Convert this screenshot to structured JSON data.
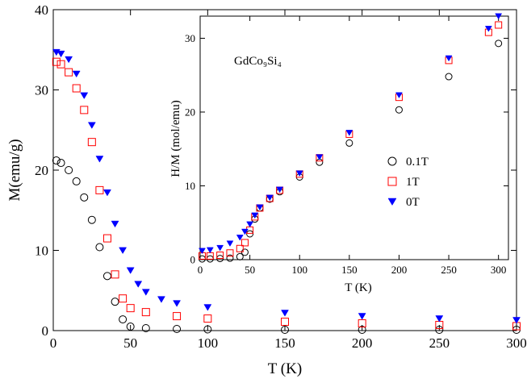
{
  "chart_data": [
    {
      "type": "scatter",
      "title": "",
      "xlabel": "T (K)",
      "ylabel": "M(emu/g)",
      "xlim": [
        0,
        300
      ],
      "ylim": [
        0,
        40
      ],
      "xticks": [
        0,
        50,
        100,
        150,
        200,
        250,
        300
      ],
      "yticks": [
        0,
        10,
        20,
        30,
        40
      ],
      "grid": false,
      "legend": "none",
      "series": [
        {
          "marker": "circle-open",
          "color": "#000000",
          "x": [
            2,
            5,
            10,
            15,
            20,
            25,
            30,
            35,
            40,
            45,
            50,
            60,
            80,
            100,
            150,
            200,
            250,
            300
          ],
          "y": [
            21.2,
            20.9,
            20.0,
            18.6,
            16.6,
            13.8,
            10.4,
            6.8,
            3.6,
            1.4,
            0.5,
            0.3,
            0.2,
            0.15,
            0.1,
            0.1,
            0.1,
            0.1
          ]
        },
        {
          "marker": "square-open",
          "color": "#ff0000",
          "x": [
            2,
            5,
            10,
            15,
            20,
            25,
            30,
            35,
            40,
            45,
            50,
            60,
            80,
            100,
            150,
            200,
            250,
            300
          ],
          "y": [
            33.5,
            33.2,
            32.2,
            30.2,
            27.5,
            23.5,
            17.5,
            11.5,
            7.0,
            4.0,
            2.8,
            2.3,
            1.8,
            1.5,
            1.1,
            0.9,
            0.7,
            0.55
          ]
        },
        {
          "marker": "triangle-down-filled",
          "color": "#0000ff",
          "x": [
            2,
            5,
            10,
            15,
            20,
            25,
            30,
            35,
            40,
            45,
            50,
            55,
            60,
            70,
            80,
            100,
            150,
            200,
            250,
            300
          ],
          "y": [
            34.7,
            34.5,
            33.8,
            32.0,
            29.3,
            25.6,
            21.4,
            17.2,
            13.3,
            10.0,
            7.5,
            5.8,
            4.8,
            3.9,
            3.4,
            2.9,
            2.2,
            1.8,
            1.5,
            1.3
          ]
        }
      ]
    },
    {
      "type": "scatter",
      "title": "",
      "annotation": "GdCo₉Si₄",
      "xlabel": "T (K)",
      "ylabel": "H/M (mol/emu)",
      "xlim": [
        0,
        310
      ],
      "ylim": [
        0,
        33
      ],
      "xticks": [
        0,
        50,
        100,
        150,
        200,
        250,
        300
      ],
      "yticks": [
        0,
        10,
        20,
        30
      ],
      "grid": false,
      "legend": "center-right",
      "series": [
        {
          "name": "0.1T",
          "marker": "circle-open",
          "color": "#000000",
          "x": [
            2,
            10,
            20,
            30,
            40,
            45,
            50,
            55,
            60,
            70,
            80,
            100,
            120,
            150,
            200,
            250,
            300
          ],
          "y": [
            0.1,
            0.1,
            0.15,
            0.2,
            0.4,
            1.0,
            3.5,
            5.5,
            7.0,
            8.2,
            9.2,
            11.2,
            13.2,
            15.8,
            20.3,
            24.8,
            29.3
          ]
        },
        {
          "name": "1T",
          "marker": "square-open",
          "color": "#ff0000",
          "x": [
            2,
            10,
            20,
            30,
            40,
            45,
            50,
            55,
            60,
            70,
            80,
            100,
            120,
            150,
            200,
            250,
            290,
            300
          ],
          "y": [
            0.5,
            0.5,
            0.6,
            0.9,
            1.5,
            2.3,
            4.0,
            5.8,
            7.0,
            8.3,
            9.4,
            11.6,
            13.8,
            17.0,
            22.0,
            27.0,
            30.8,
            31.8
          ]
        },
        {
          "name": "0T",
          "marker": "triangle-down-filled",
          "color": "#0000ff",
          "x": [
            2,
            10,
            20,
            30,
            40,
            45,
            50,
            55,
            60,
            70,
            80,
            100,
            120,
            150,
            200,
            250,
            290,
            300
          ],
          "y": [
            1.2,
            1.3,
            1.6,
            2.2,
            3.0,
            3.8,
            4.8,
            6.0,
            7.1,
            8.4,
            9.5,
            11.7,
            13.9,
            17.2,
            22.3,
            27.3,
            31.3,
            33.0
          ]
        }
      ]
    }
  ]
}
